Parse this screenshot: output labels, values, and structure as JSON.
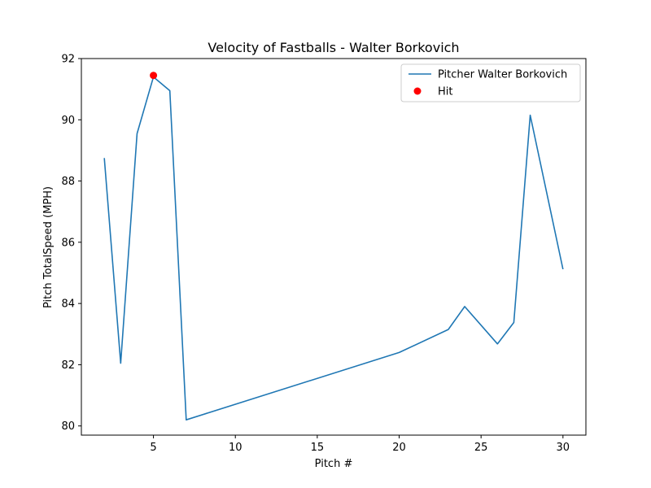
{
  "chart_data": {
    "type": "line",
    "title": "Velocity of Fastballs - Walter Borkovich",
    "xlabel": "Pitch #",
    "ylabel": "Pitch TotalSpeed (MPH)",
    "xlim": [
      0.6,
      31.4
    ],
    "ylim": [
      79.7,
      92.0
    ],
    "xticks": [
      5,
      10,
      15,
      20,
      25,
      30
    ],
    "yticks": [
      80,
      82,
      84,
      86,
      88,
      90,
      92
    ],
    "grid": false,
    "legend_position": "top-right",
    "series": [
      {
        "name": "Pitcher Walter Borkovich",
        "color": "#1f77b4",
        "x": [
          2,
          3,
          4,
          5,
          6,
          7,
          20,
          23,
          24,
          26,
          27,
          28,
          30
        ],
        "y": [
          88.75,
          82.05,
          89.55,
          91.4,
          90.95,
          80.2,
          82.4,
          83.15,
          83.9,
          82.68,
          83.38,
          90.15,
          85.12
        ]
      }
    ],
    "hits": {
      "name": "Hit",
      "color": "#ff0000",
      "points": [
        {
          "x": 5,
          "y": 91.45
        }
      ]
    }
  }
}
